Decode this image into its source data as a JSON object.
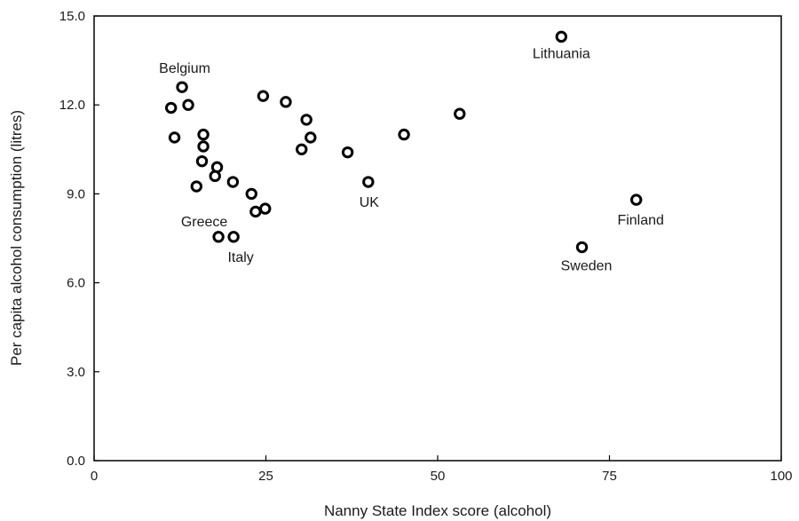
{
  "chart_data": {
    "type": "scatter",
    "xlabel": "Nanny State Index score (alcohol)",
    "ylabel": "Per capita alcohol consumption (litres)",
    "xlim": [
      0,
      100
    ],
    "ylim": [
      0,
      15
    ],
    "x_ticks": [
      0,
      25,
      50,
      75,
      100
    ],
    "x_tick_labels": [
      "0",
      "25",
      "50",
      "75",
      "100"
    ],
    "y_ticks": [
      0,
      3,
      6,
      9,
      12,
      15
    ],
    "y_tick_labels": [
      "0.0",
      "3.0",
      "6.0",
      "9.0",
      "12.0",
      "15.0"
    ],
    "grid": false,
    "marker": "hollow-circle",
    "colors": {
      "marker": "#000000",
      "axis": "#000000",
      "text": "#1a1a1a"
    },
    "points": [
      {
        "x": 12.8,
        "y": 12.6,
        "label": "Belgium"
      },
      {
        "x": 11.2,
        "y": 11.9
      },
      {
        "x": 13.7,
        "y": 12.0
      },
      {
        "x": 11.7,
        "y": 10.9
      },
      {
        "x": 15.9,
        "y": 11.0
      },
      {
        "x": 15.9,
        "y": 10.6
      },
      {
        "x": 15.7,
        "y": 10.1
      },
      {
        "x": 14.9,
        "y": 9.25
      },
      {
        "x": 17.9,
        "y": 9.9
      },
      {
        "x": 17.6,
        "y": 9.6
      },
      {
        "x": 20.2,
        "y": 9.4
      },
      {
        "x": 18.1,
        "y": 7.55,
        "label": "Greece"
      },
      {
        "x": 20.3,
        "y": 7.55,
        "label": "Italy"
      },
      {
        "x": 22.9,
        "y": 9.0
      },
      {
        "x": 23.5,
        "y": 8.4
      },
      {
        "x": 24.9,
        "y": 8.5
      },
      {
        "x": 24.6,
        "y": 12.3
      },
      {
        "x": 27.9,
        "y": 12.1
      },
      {
        "x": 30.9,
        "y": 11.5
      },
      {
        "x": 31.5,
        "y": 10.9
      },
      {
        "x": 30.2,
        "y": 10.5
      },
      {
        "x": 36.9,
        "y": 10.4
      },
      {
        "x": 39.9,
        "y": 9.4,
        "label": "UK"
      },
      {
        "x": 45.1,
        "y": 11.0
      },
      {
        "x": 53.2,
        "y": 11.7
      },
      {
        "x": 68.0,
        "y": 14.3,
        "label": "Lithuania"
      },
      {
        "x": 71.0,
        "y": 7.2,
        "label": "Sweden"
      },
      {
        "x": 78.9,
        "y": 8.8,
        "label": "Finland"
      }
    ]
  }
}
